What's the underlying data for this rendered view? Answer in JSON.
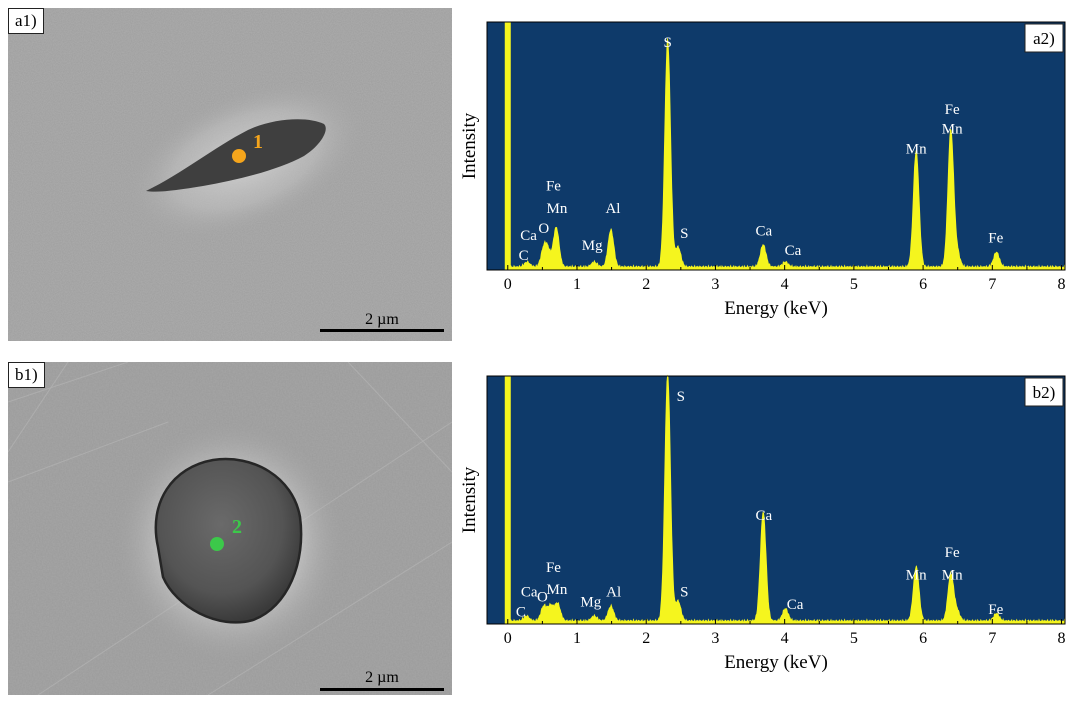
{
  "sem_panels": [
    {
      "tag": "a1)",
      "point_label": "1",
      "point_color": "#f5a51c",
      "scale_bar": "2 µm"
    },
    {
      "tag": "b1)",
      "point_label": "2",
      "point_color": "#3cc84a",
      "scale_bar": "2 µm"
    }
  ],
  "chart_data": [
    {
      "type": "line",
      "panel_tag": "a2)",
      "xlabel": "Energy (keV)",
      "ylabel": "Intensity",
      "xlim": [
        -0.3,
        8.05
      ],
      "ylim": [
        0,
        100
      ],
      "xticks": [
        0,
        1,
        2,
        3,
        4,
        5,
        6,
        7,
        8
      ],
      "background": "#0e3a6a",
      "series_color": "#f5f51e",
      "baseline_peak_x": 0.0,
      "peaks": [
        {
          "x": 0.28,
          "height": 2
        },
        {
          "x": 0.52,
          "height": 7
        },
        {
          "x": 0.58,
          "height": 6
        },
        {
          "x": 0.7,
          "height": 16
        },
        {
          "x": 1.25,
          "height": 2
        },
        {
          "x": 1.49,
          "height": 15
        },
        {
          "x": 2.31,
          "height": 92
        },
        {
          "x": 2.46,
          "height": 8
        },
        {
          "x": 3.69,
          "height": 9
        },
        {
          "x": 4.01,
          "height": 2
        },
        {
          "x": 5.9,
          "height": 47
        },
        {
          "x": 6.4,
          "height": 55
        },
        {
          "x": 6.49,
          "height": 6
        },
        {
          "x": 7.06,
          "height": 6
        }
      ],
      "annotations": [
        {
          "text": "S",
          "x": 2.31,
          "y": 90
        },
        {
          "text": "Fe",
          "x": 0.66,
          "y": 32
        },
        {
          "text": "Mn",
          "x": 0.71,
          "y": 23
        },
        {
          "text": "O",
          "x": 0.52,
          "y": 15
        },
        {
          "text": "Ca",
          "x": 0.3,
          "y": 12
        },
        {
          "text": "C",
          "x": 0.23,
          "y": 4
        },
        {
          "text": "Mg",
          "x": 1.22,
          "y": 8
        },
        {
          "text": "Al",
          "x": 1.52,
          "y": 23
        },
        {
          "text": "S",
          "x": 2.55,
          "y": 13
        },
        {
          "text": "Ca",
          "x": 3.7,
          "y": 14
        },
        {
          "text": "Ca",
          "x": 4.12,
          "y": 6
        },
        {
          "text": "Mn",
          "x": 5.9,
          "y": 47
        },
        {
          "text": "Fe",
          "x": 6.42,
          "y": 63
        },
        {
          "text": "Mn",
          "x": 6.42,
          "y": 55
        },
        {
          "text": "Fe",
          "x": 7.05,
          "y": 11
        }
      ]
    },
    {
      "type": "line",
      "panel_tag": "b2)",
      "xlabel": "Energy (keV)",
      "ylabel": "Intensity",
      "xlim": [
        -0.3,
        8.05
      ],
      "ylim": [
        0,
        100
      ],
      "xticks": [
        0,
        1,
        2,
        3,
        4,
        5,
        6,
        7,
        8
      ],
      "background": "#0e3a6a",
      "series_color": "#f5f51e",
      "baseline_peak_x": 0.0,
      "peaks": [
        {
          "x": 0.27,
          "height": 2
        },
        {
          "x": 0.52,
          "height": 6
        },
        {
          "x": 0.62,
          "height": 6
        },
        {
          "x": 0.72,
          "height": 7
        },
        {
          "x": 1.25,
          "height": 2
        },
        {
          "x": 1.49,
          "height": 6
        },
        {
          "x": 2.31,
          "height": 100
        },
        {
          "x": 2.46,
          "height": 8
        },
        {
          "x": 3.69,
          "height": 44
        },
        {
          "x": 4.01,
          "height": 5
        },
        {
          "x": 5.9,
          "height": 22
        },
        {
          "x": 6.4,
          "height": 19
        },
        {
          "x": 6.49,
          "height": 4
        },
        {
          "x": 7.06,
          "height": 3
        }
      ],
      "annotations": [
        {
          "text": "S",
          "x": 2.5,
          "y": 90
        },
        {
          "text": "Fe",
          "x": 0.66,
          "y": 21
        },
        {
          "text": "Mn",
          "x": 0.71,
          "y": 12
        },
        {
          "text": "O",
          "x": 0.5,
          "y": 9
        },
        {
          "text": "Ca",
          "x": 0.31,
          "y": 11
        },
        {
          "text": "C",
          "x": 0.19,
          "y": 3
        },
        {
          "text": "Mg",
          "x": 1.2,
          "y": 7
        },
        {
          "text": "Al",
          "x": 1.53,
          "y": 11
        },
        {
          "text": "S",
          "x": 2.55,
          "y": 11
        },
        {
          "text": "Ca",
          "x": 3.7,
          "y": 42
        },
        {
          "text": "Ca",
          "x": 4.15,
          "y": 6
        },
        {
          "text": "Mn",
          "x": 5.9,
          "y": 18
        },
        {
          "text": "Fe",
          "x": 6.42,
          "y": 27
        },
        {
          "text": "Mn",
          "x": 6.42,
          "y": 18
        },
        {
          "text": "Fe",
          "x": 7.05,
          "y": 4
        }
      ]
    }
  ]
}
